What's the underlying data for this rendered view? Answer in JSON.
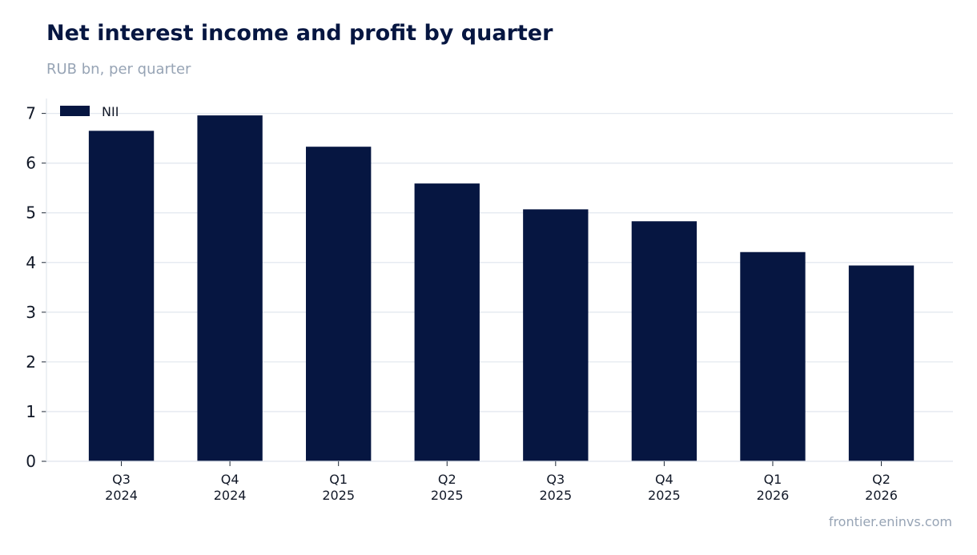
{
  "chart_data": {
    "type": "bar",
    "title": "Net interest income and profit by quarter",
    "subtitle": "RUB bn, per quarter",
    "categories": [
      [
        "Q3",
        "2024"
      ],
      [
        "Q4",
        "2024"
      ],
      [
        "Q1",
        "2025"
      ],
      [
        "Q2",
        "2025"
      ],
      [
        "Q3",
        "2025"
      ],
      [
        "Q4",
        "2025"
      ],
      [
        "Q1",
        "2026"
      ],
      [
        "Q2",
        "2026"
      ]
    ],
    "series": [
      {
        "name": "NII",
        "color": "#061641",
        "values": [
          6.65,
          6.96,
          6.33,
          5.59,
          5.07,
          4.83,
          4.21,
          3.94
        ]
      }
    ],
    "yticks": [
      0,
      1,
      2,
      3,
      4,
      5,
      6,
      7
    ],
    "ylim": [
      0,
      7.3
    ],
    "grid": true,
    "legend_position": "top-left",
    "source": "frontier.eninvs.com"
  }
}
